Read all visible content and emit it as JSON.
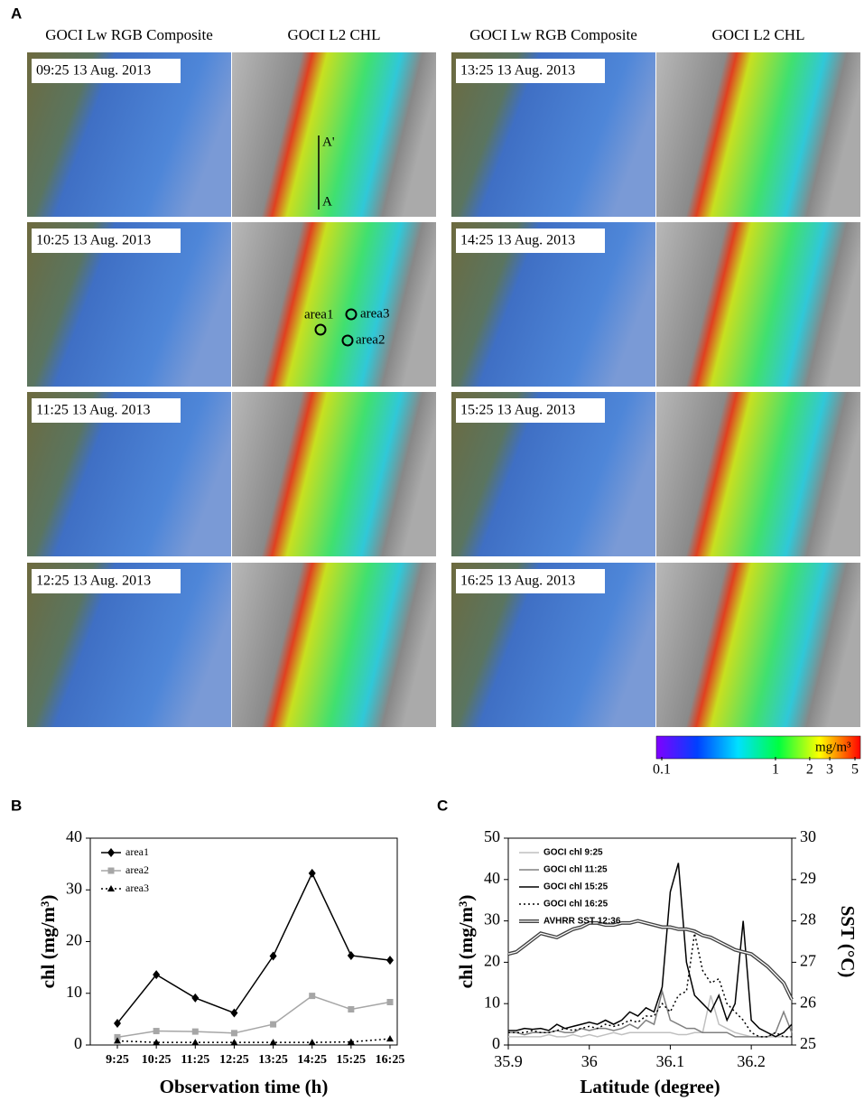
{
  "panel_a": {
    "label": "A",
    "col_headers": [
      "GOCI Lw RGB Composite",
      "GOCI L2 CHL",
      "GOCI Lw RGB Composite",
      "GOCI L2 CHL"
    ],
    "timestamps": [
      "09:25 13 Aug. 2013",
      "10:25 13 Aug. 2013",
      "11:25 13 Aug. 2013",
      "12:25 13 Aug. 2013",
      "13:25 13 Aug. 2013",
      "14:25 13 Aug. 2013",
      "15:25 13 Aug. 2013",
      "16:25 13 Aug. 2013"
    ],
    "annotations": [
      "A'",
      "A",
      "area1",
      "area3",
      "area2"
    ],
    "colorbar": {
      "unit": "mg/m³",
      "lim": [
        0.1,
        5
      ],
      "ticks": [
        0.1,
        1,
        2,
        3,
        5
      ],
      "log": true
    }
  },
  "chart_data": [
    {
      "type": "line",
      "label": "B",
      "x_label": "Observation time (h)",
      "y_label": "chl (mg/m³)",
      "categories": [
        "9:25",
        "10:25",
        "11:25",
        "12:25",
        "13:25",
        "14:25",
        "15:25",
        "16:25"
      ],
      "ylim": [
        0,
        40
      ],
      "yticks": [
        0,
        10,
        20,
        30,
        40
      ],
      "legend": "top-left",
      "series": [
        {
          "name": "area1",
          "color": "#000000",
          "marker": "diamond",
          "line_style": "solid",
          "values": [
            4.2,
            13.6,
            9.1,
            6.2,
            17.2,
            33.2,
            17.3,
            16.4
          ]
        },
        {
          "name": "area2",
          "color": "#a6a6a6",
          "marker": "square",
          "line_style": "solid",
          "values": [
            1.5,
            2.7,
            2.6,
            2.3,
            4.0,
            9.5,
            6.9,
            8.3
          ]
        },
        {
          "name": "area3",
          "color": "#000000",
          "marker": "triangle",
          "line_style": "dotted",
          "values": [
            0.8,
            0.5,
            0.5,
            0.5,
            0.5,
            0.5,
            0.6,
            1.2
          ]
        }
      ]
    },
    {
      "type": "line",
      "label": "C",
      "x_label": "Latitude (degree)",
      "y_label": "chl (mg/m³)",
      "y2_label": "SST (°C)",
      "x": [
        35.9,
        35.91,
        35.92,
        35.93,
        35.94,
        35.95,
        35.96,
        35.97,
        35.98,
        35.99,
        36.0,
        36.01,
        36.02,
        36.03,
        36.04,
        36.05,
        36.06,
        36.07,
        36.08,
        36.09,
        36.1,
        36.11,
        36.12,
        36.13,
        36.14,
        36.15,
        36.16,
        36.17,
        36.18,
        36.19,
        36.2,
        36.21,
        36.22,
        36.23,
        36.24,
        36.25
      ],
      "xlim": [
        35.9,
        36.25
      ],
      "xticks": [
        35.9,
        36,
        36.1,
        36.2
      ],
      "ylim": [
        0,
        50
      ],
      "yticks": [
        0,
        10,
        20,
        30,
        40,
        50
      ],
      "y2lim": [
        25,
        30
      ],
      "y2ticks": [
        25,
        26,
        27,
        28,
        29,
        30
      ],
      "legend": "top-left",
      "series": [
        {
          "name": "GOCI chl 9:25",
          "color": "#c0c0c0",
          "line_style": "solid",
          "values": [
            2,
            2,
            2,
            2,
            2,
            2.5,
            2,
            2,
            2.5,
            2,
            2.5,
            2,
            2.5,
            3,
            2.5,
            3,
            3,
            3,
            3,
            3,
            3,
            2.5,
            2.5,
            3,
            3,
            12,
            5,
            4,
            3,
            2.5,
            2,
            2,
            2,
            2,
            2,
            2
          ]
        },
        {
          "name": "GOCI chl 11:25",
          "color": "#808080",
          "line_style": "solid",
          "values": [
            3,
            3,
            2.5,
            3,
            3,
            3,
            3.5,
            3,
            3,
            4,
            3.5,
            4,
            4,
            3.5,
            4,
            5,
            4,
            6,
            5,
            13,
            6,
            5,
            4,
            4,
            3,
            3,
            3,
            3,
            2,
            2,
            2,
            2,
            2,
            3,
            8,
            3
          ]
        },
        {
          "name": "GOCI chl 15:25",
          "color": "#000000",
          "line_style": "solid",
          "values": [
            3.5,
            3.5,
            4,
            3.8,
            4,
            3.5,
            5,
            4,
            4.5,
            5,
            5.5,
            5,
            6,
            5,
            6,
            8,
            7,
            9,
            8,
            14,
            37,
            44,
            20,
            12,
            10,
            8,
            12,
            6,
            10,
            30,
            6,
            4,
            3,
            2,
            3,
            5
          ]
        },
        {
          "name": "GOCI chl 16:25",
          "color": "#000000",
          "line_style": "dotted",
          "values": [
            3,
            3,
            3,
            3.5,
            3,
            3,
            3.5,
            4,
            3.5,
            4,
            4.5,
            4,
            5,
            4.5,
            5,
            6,
            5.5,
            7,
            7,
            10,
            8,
            12,
            13,
            27,
            18,
            15,
            16,
            10,
            8,
            6,
            3,
            2,
            2,
            3,
            2,
            2
          ]
        },
        {
          "name": "AVHRR SST 12:36",
          "color": "#404040",
          "line_style": "double",
          "axis": "y2",
          "values": [
            27.2,
            27.25,
            27.4,
            27.55,
            27.7,
            27.65,
            27.6,
            27.7,
            27.8,
            27.85,
            27.95,
            27.95,
            27.9,
            27.9,
            27.95,
            27.95,
            28,
            27.95,
            27.9,
            27.85,
            27.85,
            27.8,
            27.8,
            27.75,
            27.65,
            27.6,
            27.5,
            27.4,
            27.3,
            27.25,
            27.2,
            27.05,
            26.9,
            26.7,
            26.5,
            26.1
          ]
        }
      ]
    }
  ]
}
